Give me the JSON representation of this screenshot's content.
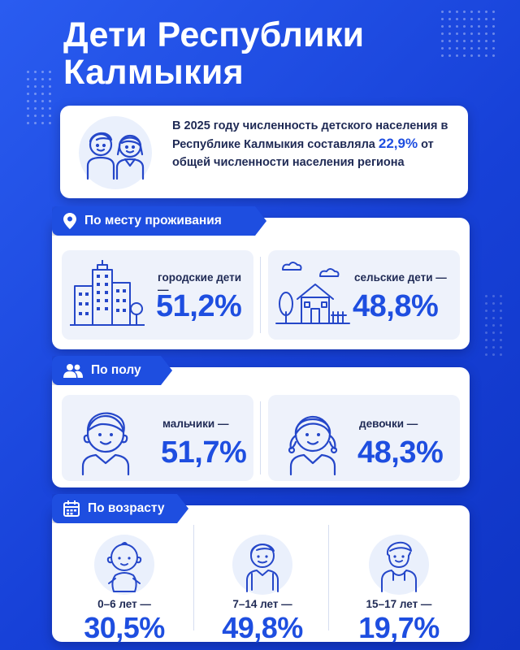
{
  "header": {
    "title_line1": "Дети Республики",
    "title_line2": "Калмыкия"
  },
  "intro": {
    "text_before": "В 2025 году численность детского населения в Республике Калмыкия составляла ",
    "highlight": "22,9%",
    "text_after": " от общей численности населения региона"
  },
  "residence": {
    "heading": "По месту проживания",
    "urban_label": "городские дети —",
    "urban_value": "51,2%",
    "rural_label": "сельские дети —",
    "rural_value": "48,8%"
  },
  "gender": {
    "heading": "По полу",
    "boys_label": "мальчики —",
    "boys_value": "51,7%",
    "girls_label": "девочки —",
    "girls_value": "48,3%"
  },
  "age": {
    "heading": "По возрасту",
    "groups": [
      {
        "label": "0–6 лет —",
        "value": "30,5%"
      },
      {
        "label": "7–14 лет —",
        "value": "49,8%"
      },
      {
        "label": "15–17 лет —",
        "value": "19,7%"
      }
    ]
  },
  "colors": {
    "accent": "#1e4ee0",
    "background": "#1741d8",
    "text": "#1f2a55"
  },
  "icons": [
    "kids-icon",
    "location-pin-icon",
    "city-buildings-icon",
    "village-house-icon",
    "people-icon",
    "boy-icon",
    "girl-icon",
    "calendar-icon",
    "baby-icon",
    "schoolkid-icon",
    "teen-icon"
  ]
}
